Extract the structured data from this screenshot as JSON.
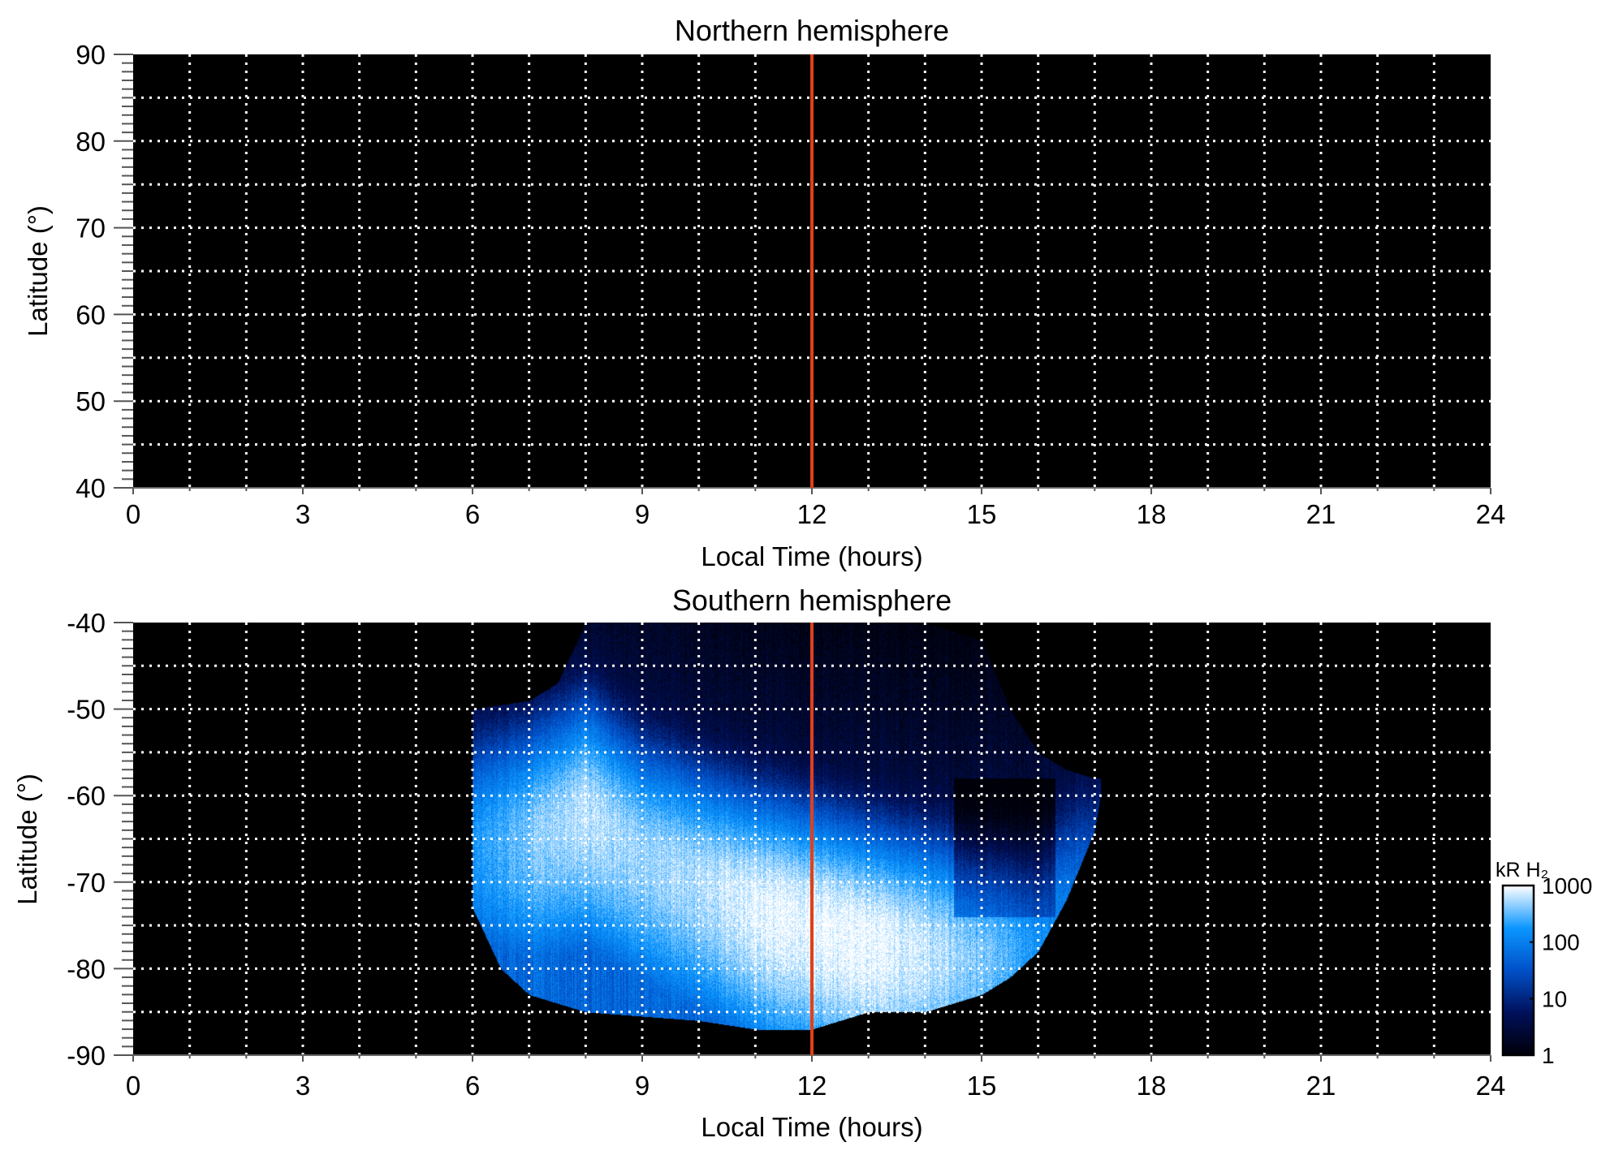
{
  "chart_data": [
    {
      "type": "heatmap",
      "title": "Northern hemisphere",
      "xlabel": "Local Time (hours)",
      "ylabel": "Latitude (°)",
      "xlim": [
        0,
        24
      ],
      "ylim": [
        40,
        90
      ],
      "xticks": [
        "0",
        "3",
        "6",
        "9",
        "12",
        "15",
        "18",
        "21",
        "24"
      ],
      "yticks": [
        "40",
        "50",
        "60",
        "70",
        "80",
        "90"
      ],
      "grid": true,
      "marker_line": {
        "x": 12,
        "color": "#e0401a"
      },
      "emission": "none"
    },
    {
      "type": "heatmap",
      "title": "Southern hemisphere",
      "xlabel": "Local Time (hours)",
      "ylabel": "Latitude (°)",
      "xlim": [
        0,
        24
      ],
      "ylim": [
        -90,
        -40
      ],
      "xticks": [
        "0",
        "3",
        "6",
        "9",
        "12",
        "15",
        "18",
        "21",
        "24"
      ],
      "yticks": [
        "-90",
        "-80",
        "-70",
        "-60",
        "-50",
        "-40"
      ],
      "grid": true,
      "marker_line": {
        "x": 12,
        "color": "#e0401a"
      },
      "coverage": {
        "local_time": [
          6,
          6.5,
          7,
          7.5,
          8,
          9,
          10,
          11,
          12,
          13,
          14,
          15,
          15.5,
          16,
          16.5,
          17,
          17.1
        ],
        "upper_lat": [
          -50,
          -49.5,
          -49,
          -47,
          -40,
          -40,
          -40,
          -40,
          -40,
          -40,
          -40,
          -42,
          -50,
          -55,
          -57,
          -58,
          -58
        ],
        "lower_lat": [
          -73,
          -80,
          -83,
          -84,
          -85,
          -85.5,
          -86,
          -87,
          -87,
          -85,
          -85,
          -83,
          -81,
          -78,
          -72,
          -64,
          -60
        ]
      },
      "auroral_oval": {
        "local_time": [
          6,
          7,
          8,
          9,
          10,
          11,
          12,
          13,
          14,
          15,
          16,
          16.8
        ],
        "center_lat": [
          -66,
          -65,
          -62,
          -67,
          -70,
          -73,
          -75,
          -77,
          -78,
          -79,
          -78,
          -72
        ],
        "peak_kR": [
          150,
          400,
          700,
          500,
          600,
          900,
          1000,
          1000,
          700,
          400,
          150,
          60
        ]
      },
      "colorbar": {
        "label": "kR H₂",
        "scale": "log",
        "range": [
          1,
          1000
        ],
        "ticks": [
          "1",
          "10",
          "100",
          "1000"
        ],
        "colors": [
          "#000008",
          "#00105a",
          "#0050c8",
          "#0a96ff",
          "#ffffff"
        ]
      }
    }
  ]
}
